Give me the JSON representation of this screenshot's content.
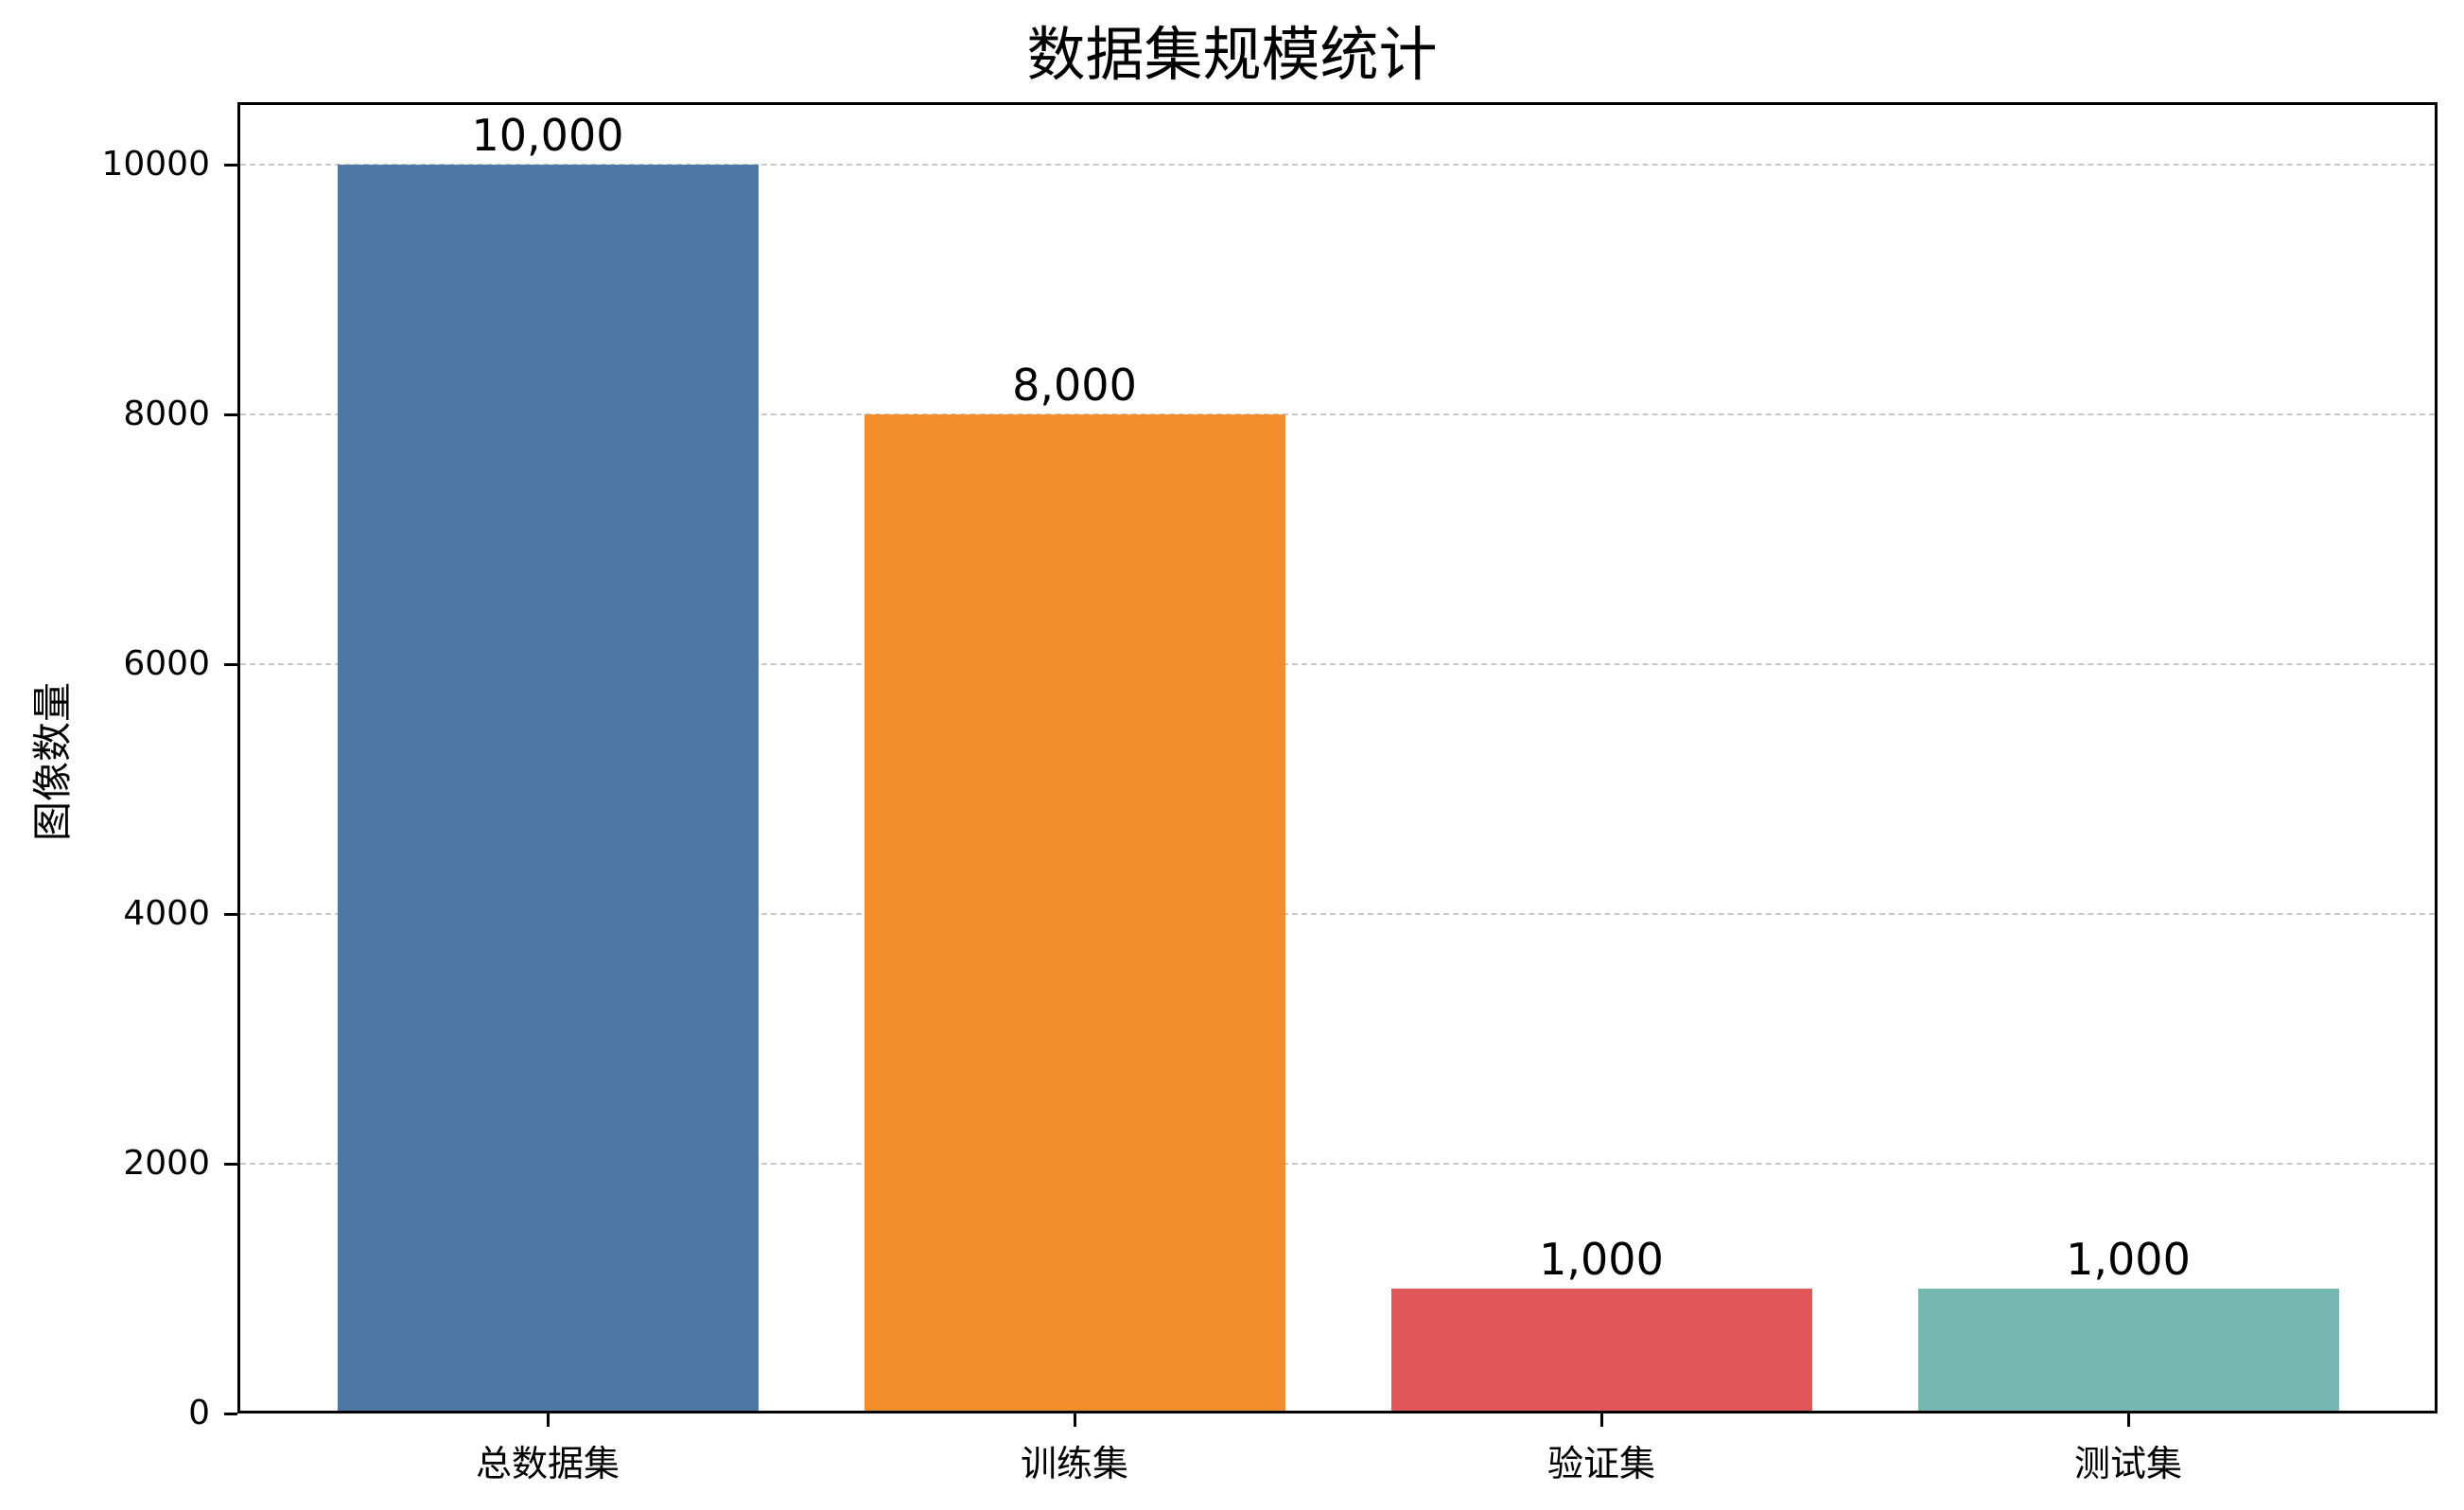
{
  "chart_data": {
    "type": "bar",
    "title": "数据集规模统计",
    "xlabel": "",
    "ylabel": "图像数量",
    "categories": [
      "总数据集",
      "训练集",
      "验证集",
      "测试集"
    ],
    "values": [
      10000,
      8000,
      1000,
      1000
    ],
    "data_labels": [
      "10,000",
      "8,000",
      "1,000",
      "1,000"
    ],
    "colors": [
      "#4E79A7",
      "#F28E2B",
      "#E15759",
      "#76B7B2"
    ],
    "ylim": [
      0,
      10500
    ],
    "yticks": [
      0,
      2000,
      4000,
      6000,
      8000,
      10000
    ],
    "ytick_labels": [
      "0",
      "2000",
      "4000",
      "6000",
      "8000",
      "10000"
    ],
    "grid": {
      "axis": "y",
      "style": "dashed",
      "color": "#c8c8c8"
    },
    "legend": null
  }
}
